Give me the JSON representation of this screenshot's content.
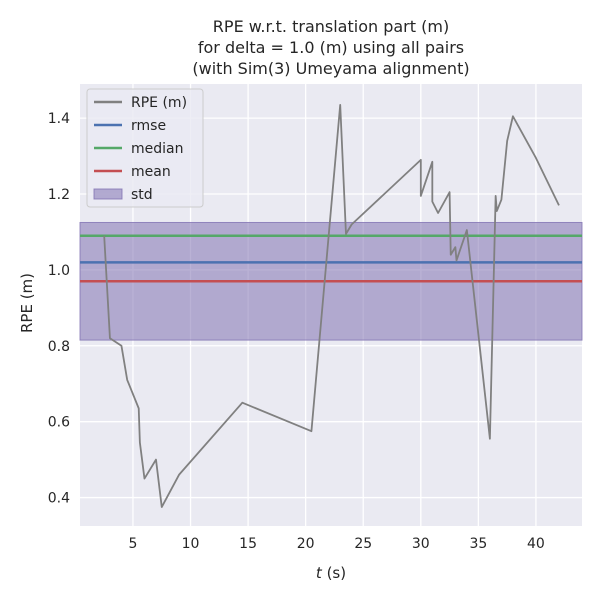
{
  "chart_data": {
    "type": "line",
    "title": [
      "RPE w.r.t. translation part (m)",
      "for delta = 1.0 (m) using all pairs",
      "(with Sim(3) Umeyama alignment)"
    ],
    "xlabel_var": "t",
    "xlabel_unit": " (s)",
    "ylabel": "RPE (m)",
    "xlim": [
      0.4,
      44
    ],
    "ylim": [
      0.325,
      1.49
    ],
    "xticks": [
      5,
      10,
      15,
      20,
      25,
      30,
      35,
      40
    ],
    "yticks": [
      0.4,
      0.6,
      0.8,
      1.0,
      1.2,
      1.4
    ],
    "ytick_labels": [
      "0.4",
      "0.6",
      "0.8",
      "1.0",
      "1.2",
      "1.4"
    ],
    "grid": true,
    "legend_position": "upper-left",
    "series": [
      {
        "name": "RPE (m)",
        "color": "#808080",
        "x": [
          2.5,
          3.0,
          4.0,
          4.5,
          5.5,
          5.6,
          6.0,
          7.0,
          7.5,
          9.0,
          14.5,
          20.5,
          23.0,
          23.5,
          24.0,
          30.0,
          30.0,
          31.0,
          31.0,
          31.5,
          32.5,
          32.6,
          33.0,
          33.1,
          34.0,
          36.0,
          36.5,
          36.6,
          37.0,
          37.5,
          38.0,
          40.0,
          42.0
        ],
        "y": [
          1.09,
          0.82,
          0.8,
          0.71,
          0.635,
          0.545,
          0.45,
          0.5,
          0.375,
          0.46,
          0.65,
          0.575,
          1.435,
          1.095,
          1.12,
          1.29,
          1.195,
          1.285,
          1.18,
          1.15,
          1.205,
          1.04,
          1.06,
          1.025,
          1.105,
          0.555,
          1.195,
          1.155,
          1.185,
          1.34,
          1.405,
          1.295,
          1.17
        ]
      }
    ],
    "stats": {
      "rmse": {
        "name": "rmse",
        "value": 1.02,
        "color": "#4c72b0"
      },
      "median": {
        "name": "median",
        "value": 1.09,
        "color": "#55a868"
      },
      "mean": {
        "name": "mean",
        "value": 0.97,
        "color": "#c44e52"
      },
      "std": {
        "name": "std",
        "lower": 0.815,
        "upper": 1.125,
        "color": "#8172b2"
      }
    },
    "colors": {
      "background": "#eaeaf2",
      "grid": "#ffffff"
    }
  }
}
